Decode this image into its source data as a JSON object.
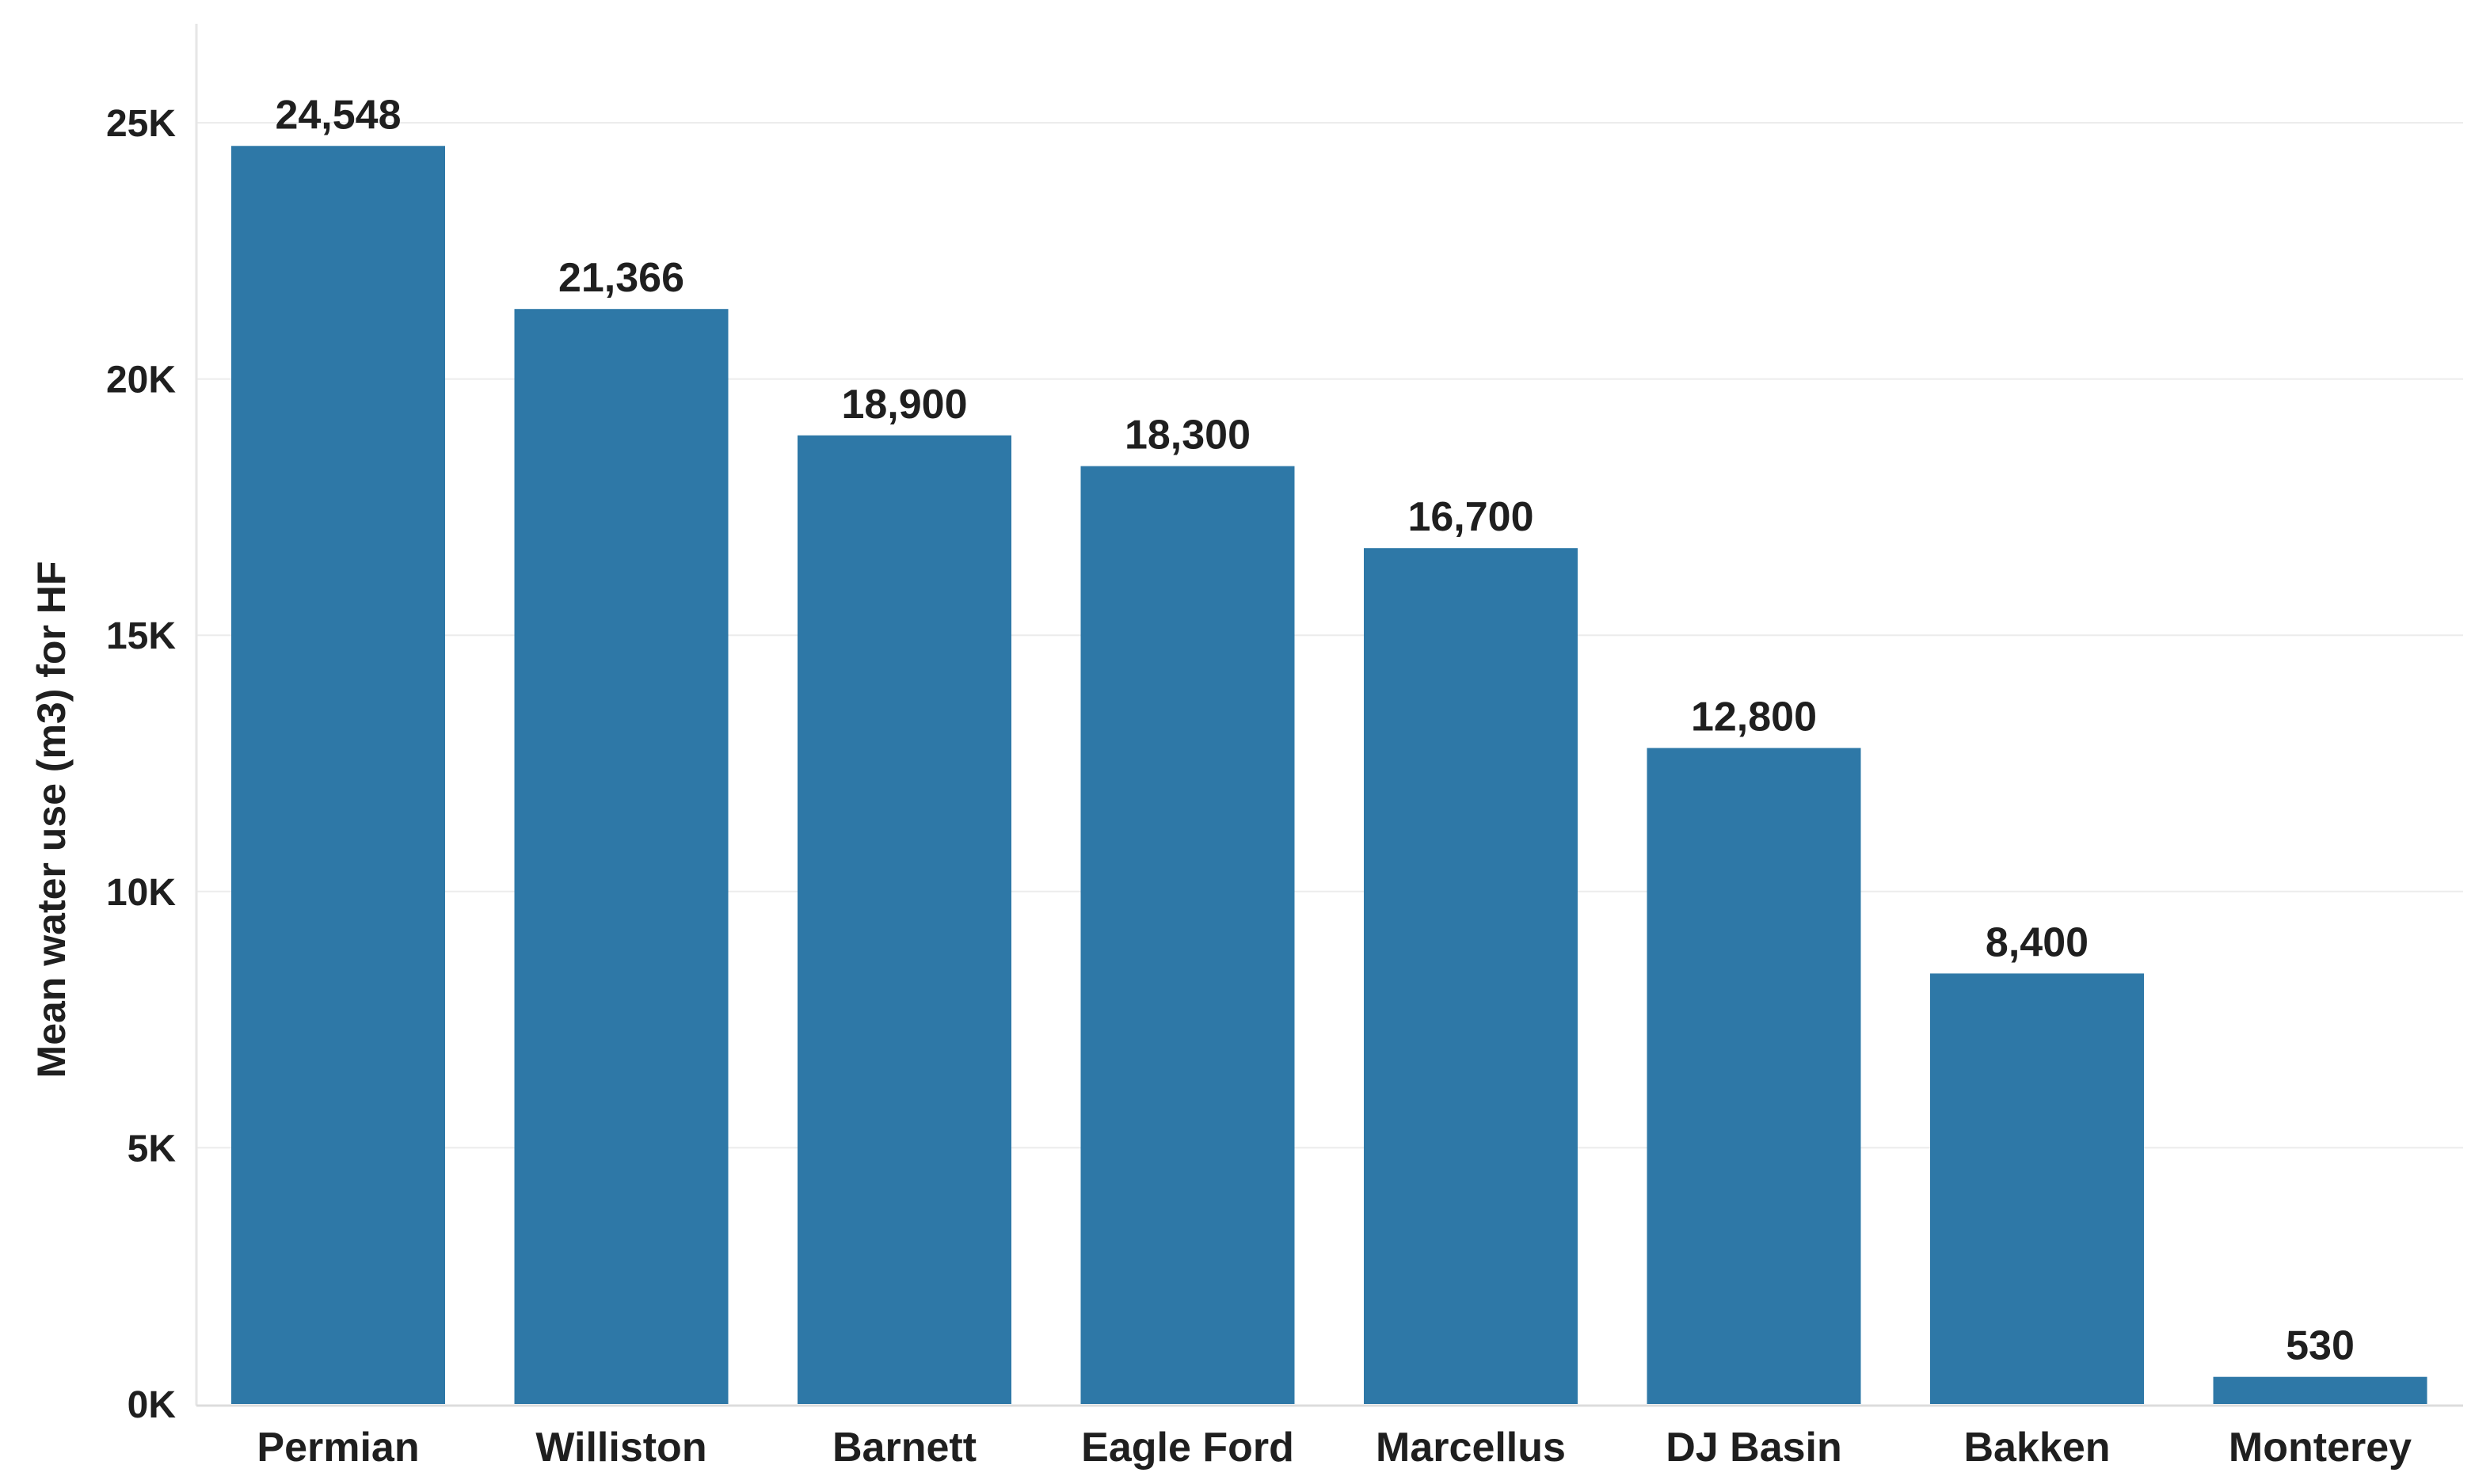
{
  "chart_data": {
    "type": "bar",
    "categories": [
      "Permian",
      "Williston",
      "Barnett",
      "Eagle Ford",
      "Marcellus",
      "DJ Basin",
      "Bakken",
      "Monterey"
    ],
    "values": [
      24548,
      21366,
      18900,
      18300,
      16700,
      12800,
      8400,
      530
    ],
    "data_labels": [
      "24,548",
      "21,366",
      "18,900",
      "18,300",
      "16,700",
      "12,800",
      "8,400",
      "530"
    ],
    "title": "",
    "xlabel": "",
    "ylabel": "Mean water use (m3) for HF",
    "ylim": [
      0,
      25000
    ],
    "yticks": [
      0,
      5000,
      10000,
      15000,
      20000,
      25000
    ],
    "ytick_labels": [
      "0K",
      "5K",
      "10K",
      "15K",
      "20K",
      "25K"
    ],
    "grid": true,
    "legend": "none",
    "bar_color": "#2e78a7",
    "gridline_color": "#ececec"
  }
}
